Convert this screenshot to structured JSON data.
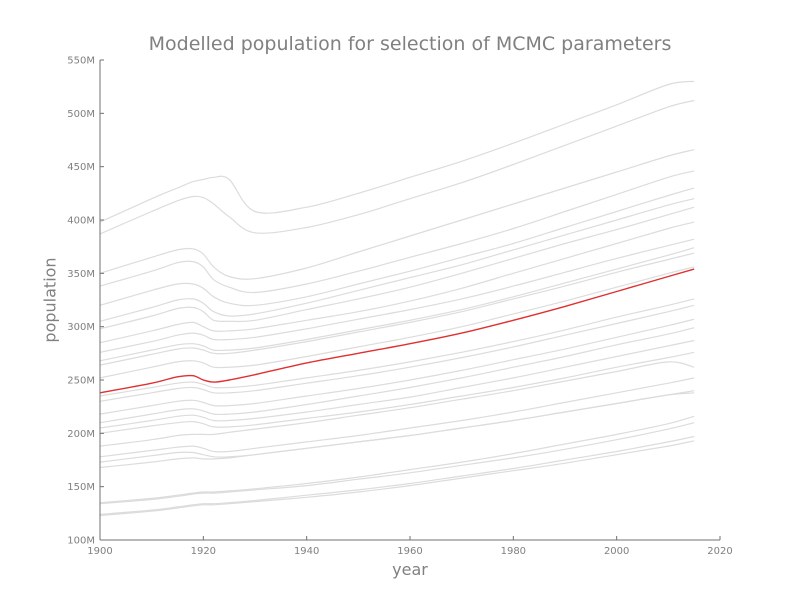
{
  "chart_data": {
    "type": "line",
    "title": "Modelled population for selection of MCMC parameters",
    "xlabel": "year",
    "ylabel": "population",
    "xlim": [
      1900,
      2020
    ],
    "ylim": [
      100,
      550
    ],
    "x_ticks": [
      1900,
      1920,
      1940,
      1960,
      1980,
      2000,
      2020
    ],
    "x_tick_labels": [
      "1900",
      "1920",
      "1940",
      "1960",
      "1980",
      "2000",
      "2020"
    ],
    "y_ticks": [
      100,
      150,
      200,
      250,
      300,
      350,
      400,
      450,
      500,
      550
    ],
    "y_tick_labels": [
      "100M",
      "150M",
      "200M",
      "250M",
      "300M",
      "350M",
      "400M",
      "450M",
      "500M",
      "550M"
    ],
    "y_unit": "M",
    "grid": false,
    "legend": "none",
    "highlight_color": "#e03030",
    "background_color": "#dcdcdc",
    "x": [
      1900,
      1910,
      1915,
      1918,
      1920,
      1922,
      1925,
      1930,
      1940,
      1950,
      1960,
      1970,
      1980,
      1990,
      2000,
      2010,
      2015
    ],
    "series": [
      {
        "values": [
          238,
          247,
          253,
          254,
          250,
          248,
          250,
          255,
          266,
          275,
          284,
          294,
          306,
          319,
          333,
          347,
          354
        ],
        "highlight": true
      },
      {
        "values": [
          398,
          420,
          430,
          436,
          438,
          440,
          438,
          408,
          412,
          425,
          440,
          455,
          472,
          490,
          508,
          527,
          530
        ]
      },
      {
        "values": [
          387,
          408,
          418,
          422,
          421,
          415,
          403,
          388,
          393,
          405,
          420,
          435,
          452,
          470,
          488,
          506,
          512
        ]
      },
      {
        "values": [
          350,
          365,
          372,
          373,
          368,
          356,
          347,
          345,
          355,
          370,
          385,
          400,
          415,
          430,
          445,
          460,
          466
        ]
      },
      {
        "values": [
          338,
          352,
          360,
          361,
          356,
          344,
          337,
          332,
          340,
          352,
          365,
          378,
          392,
          408,
          424,
          440,
          446
        ]
      },
      {
        "values": [
          320,
          334,
          340,
          340,
          336,
          328,
          322,
          320,
          328,
          340,
          352,
          365,
          378,
          393,
          408,
          423,
          430
        ]
      },
      {
        "values": [
          305,
          318,
          325,
          326,
          322,
          314,
          310,
          312,
          322,
          334,
          346,
          358,
          372,
          386,
          400,
          414,
          420
        ]
      },
      {
        "values": [
          298,
          310,
          317,
          318,
          314,
          306,
          305,
          306,
          316,
          326,
          337,
          350,
          364,
          378,
          391,
          405,
          412
        ]
      },
      {
        "values": [
          285,
          296,
          302,
          304,
          300,
          296,
          296,
          298,
          306,
          314,
          324,
          336,
          350,
          364,
          378,
          392,
          398
        ]
      },
      {
        "values": [
          276,
          286,
          292,
          294,
          292,
          288,
          288,
          290,
          298,
          307,
          316,
          326,
          338,
          351,
          364,
          376,
          382
        ]
      },
      {
        "values": [
          268,
          278,
          283,
          284,
          282,
          278,
          278,
          280,
          288,
          297,
          306,
          316,
          328,
          341,
          354,
          367,
          374
        ]
      },
      {
        "values": [
          264,
          274,
          279,
          280,
          278,
          275,
          275,
          278,
          286,
          295,
          304,
          314,
          326,
          338,
          351,
          363,
          369
        ]
      },
      {
        "values": [
          252,
          262,
          267,
          268,
          266,
          262,
          262,
          264,
          272,
          281,
          290,
          300,
          312,
          324,
          337,
          350,
          356
        ]
      },
      {
        "values": [
          235,
          243,
          247,
          248,
          246,
          243,
          243,
          245,
          252,
          259,
          267,
          276,
          286,
          297,
          309,
          320,
          326
        ]
      },
      {
        "values": [
          230,
          238,
          242,
          243,
          241,
          238,
          238,
          240,
          247,
          254,
          262,
          271,
          281,
          292,
          303,
          314,
          320
        ]
      },
      {
        "values": [
          218,
          226,
          230,
          231,
          229,
          226,
          226,
          228,
          235,
          242,
          250,
          259,
          269,
          279,
          290,
          301,
          307
        ]
      },
      {
        "values": [
          210,
          218,
          222,
          223,
          221,
          218,
          218,
          220,
          227,
          235,
          243,
          252,
          262,
          272,
          283,
          293,
          299
        ]
      },
      {
        "values": [
          205,
          212,
          216,
          217,
          215,
          212,
          212,
          214,
          220,
          227,
          234,
          243,
          252,
          262,
          272,
          282,
          287
        ]
      },
      {
        "values": [
          200,
          207,
          210,
          211,
          209,
          206,
          206,
          208,
          214,
          220,
          227,
          235,
          243,
          252,
          262,
          271,
          276
        ]
      },
      {
        "values": [
          188,
          194,
          198,
          199,
          199,
          199,
          201,
          204,
          210,
          217,
          224,
          232,
          240,
          249,
          258,
          267,
          262
        ]
      },
      {
        "values": [
          178,
          184,
          187,
          188,
          186,
          183,
          183,
          186,
          192,
          198,
          205,
          212,
          220,
          229,
          238,
          247,
          252
        ]
      },
      {
        "values": [
          173,
          179,
          182,
          182,
          180,
          178,
          178,
          180,
          186,
          192,
          198,
          205,
          212,
          220,
          228,
          236,
          240
        ]
      },
      {
        "values": [
          168,
          173,
          176,
          177,
          176,
          176,
          177,
          180,
          186,
          192,
          198,
          205,
          212,
          220,
          228,
          236,
          238
        ]
      },
      {
        "values": [
          135,
          139,
          142,
          144,
          145,
          145,
          146,
          148,
          153,
          159,
          166,
          173,
          181,
          190,
          199,
          209,
          216
        ]
      },
      {
        "values": [
          134,
          138,
          141,
          143,
          144,
          144,
          145,
          147,
          151,
          157,
          163,
          170,
          177,
          185,
          194,
          204,
          210
        ]
      },
      {
        "values": [
          124,
          128,
          131,
          133,
          134,
          134,
          135,
          137,
          142,
          147,
          153,
          160,
          167,
          175,
          183,
          192,
          197
        ]
      },
      {
        "values": [
          123,
          127,
          130,
          132,
          133,
          133,
          134,
          136,
          140,
          145,
          151,
          158,
          165,
          172,
          180,
          188,
          193
        ]
      }
    ]
  }
}
